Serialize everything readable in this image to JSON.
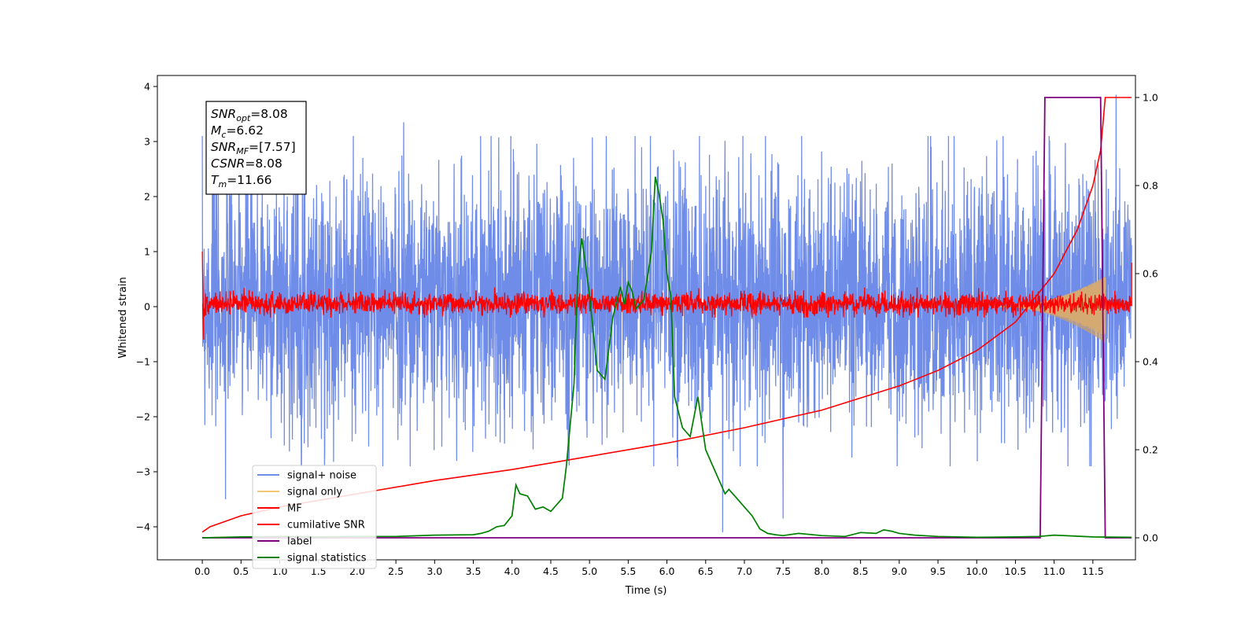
{
  "chart_data": {
    "type": "line",
    "xlabel": "Time (s)",
    "ylabel": "Whitened strain",
    "xlim": [
      -0.58,
      12.05
    ],
    "ylim": [
      -4.6,
      4.2
    ],
    "y2lim": [
      -0.05,
      1.05
    ],
    "x_ticks": [
      0.0,
      0.5,
      1.0,
      1.5,
      2.0,
      2.5,
      3.0,
      3.5,
      4.0,
      4.5,
      5.0,
      5.5,
      6.0,
      6.5,
      7.0,
      7.5,
      8.0,
      8.5,
      9.0,
      9.5,
      10.0,
      10.5,
      11.0,
      11.5
    ],
    "x_tick_labels": [
      "0.0",
      "0.5",
      "1.0",
      "1.5",
      "2.0",
      "2.5",
      "3.0",
      "3.5",
      "4.0",
      "4.5",
      "5.0",
      "5.5",
      "6.0",
      "6.5",
      "7.0",
      "7.5",
      "8.0",
      "8.5",
      "9.0",
      "9.5",
      "10.0",
      "10.5",
      "11.0",
      "11.5"
    ],
    "y_ticks": [
      -4,
      -3,
      -2,
      -1,
      0,
      1,
      2,
      3,
      4
    ],
    "y_tick_labels": [
      "−4",
      "−3",
      "−2",
      "−1",
      "0",
      "1",
      "2",
      "3",
      "4"
    ],
    "y2_ticks": [
      0.0,
      0.2,
      0.4,
      0.6,
      0.8,
      1.0
    ],
    "y2_tick_labels": [
      "0.0",
      "0.2",
      "0.4",
      "0.6",
      "0.8",
      "1.0"
    ],
    "grid": false,
    "legend_position": "bottom-left",
    "annotation_box": {
      "position": "top-left",
      "lines": [
        {
          "base": "SNR",
          "sub": "opt",
          "rest": "=8.08"
        },
        {
          "base": "M",
          "sub": "c",
          "rest": "=6.62"
        },
        {
          "base": "SNR",
          "sub": "MF",
          "rest": "=[7.57]"
        },
        {
          "base": "CSNR",
          "sub": "",
          "rest": "=8.08"
        },
        {
          "base": "T",
          "sub": "m",
          "rest": "=11.66"
        }
      ]
    },
    "series": [
      {
        "name": "signal+ noise",
        "axis": "left",
        "color": "#6f8ce8",
        "style": "noise band",
        "x_range": [
          0.0,
          12.0
        ],
        "envelope_upper": 2.2,
        "envelope_lower": -1.9,
        "peak_spikes": [
          [
            0.3,
            -3.5
          ],
          [
            2.6,
            3.35
          ],
          [
            6.72,
            -4.1
          ],
          [
            7.5,
            -3.85
          ],
          [
            11.8,
            3.85
          ]
        ]
      },
      {
        "name": "signal only",
        "axis": "left",
        "color": "#f5c878",
        "style": "chirp",
        "x_range": [
          10.3,
          11.66
        ],
        "amplitude_end": 0.55
      },
      {
        "name": "MF",
        "axis": "left",
        "color": "#ff0000",
        "style": "noise band",
        "x_range": [
          0.0,
          12.0
        ],
        "envelope_upper": 0.25,
        "envelope_lower": -0.15,
        "start_value": 1.0,
        "end_value": 0.8
      },
      {
        "name": "cumilative SNR",
        "axis": "right",
        "color": "#ff0000",
        "x": [
          0.0,
          0.1,
          0.5,
          1.0,
          2.0,
          3.0,
          4.0,
          5.0,
          6.0,
          7.0,
          8.0,
          9.0,
          9.5,
          10.0,
          10.5,
          11.0,
          11.3,
          11.5,
          11.6,
          11.66,
          12.0
        ],
        "values": [
          0.013,
          0.025,
          0.05,
          0.07,
          0.1,
          0.13,
          0.155,
          0.185,
          0.215,
          0.25,
          0.29,
          0.345,
          0.38,
          0.425,
          0.49,
          0.6,
          0.7,
          0.8,
          0.88,
          1.0,
          1.0
        ]
      },
      {
        "name": "label",
        "axis": "right",
        "color": "#800080",
        "x": [
          0.0,
          10.82,
          10.88,
          11.6,
          11.66,
          12.0
        ],
        "values": [
          0.0,
          0.0,
          1.0,
          1.0,
          0.0,
          0.0
        ]
      },
      {
        "name": "signal statistics",
        "axis": "right",
        "color": "#008000",
        "x": [
          0.0,
          0.5,
          1.0,
          1.5,
          2.0,
          2.5,
          3.0,
          3.5,
          3.6,
          3.7,
          3.8,
          3.9,
          4.0,
          4.05,
          4.1,
          4.2,
          4.3,
          4.4,
          4.5,
          4.6,
          4.65,
          4.7,
          4.8,
          4.85,
          4.9,
          4.95,
          5.0,
          5.1,
          5.2,
          5.3,
          5.4,
          5.45,
          5.5,
          5.55,
          5.6,
          5.7,
          5.8,
          5.85,
          5.9,
          5.95,
          6.0,
          6.05,
          6.1,
          6.2,
          6.3,
          6.4,
          6.5,
          6.6,
          6.7,
          6.75,
          6.8,
          6.9,
          7.0,
          7.1,
          7.2,
          7.3,
          7.4,
          7.5,
          7.7,
          8.0,
          8.3,
          8.5,
          8.7,
          8.8,
          8.9,
          9.0,
          9.2,
          9.5,
          10.0,
          10.5,
          10.8,
          11.0,
          11.5,
          12.0
        ],
        "values": [
          0.0,
          0.002,
          0.003,
          0.002,
          0.003,
          0.003,
          0.006,
          0.007,
          0.01,
          0.015,
          0.025,
          0.028,
          0.05,
          0.12,
          0.1,
          0.095,
          0.065,
          0.07,
          0.06,
          0.08,
          0.09,
          0.16,
          0.35,
          0.6,
          0.68,
          0.62,
          0.55,
          0.38,
          0.36,
          0.5,
          0.57,
          0.53,
          0.58,
          0.56,
          0.52,
          0.54,
          0.65,
          0.82,
          0.78,
          0.72,
          0.6,
          0.55,
          0.32,
          0.25,
          0.23,
          0.32,
          0.2,
          0.16,
          0.12,
          0.1,
          0.11,
          0.09,
          0.07,
          0.05,
          0.02,
          0.01,
          0.007,
          0.005,
          0.01,
          0.005,
          0.003,
          0.012,
          0.01,
          0.018,
          0.015,
          0.01,
          0.006,
          0.003,
          0.001,
          0.002,
          0.003,
          0.006,
          0.002,
          0.001
        ]
      }
    ]
  }
}
